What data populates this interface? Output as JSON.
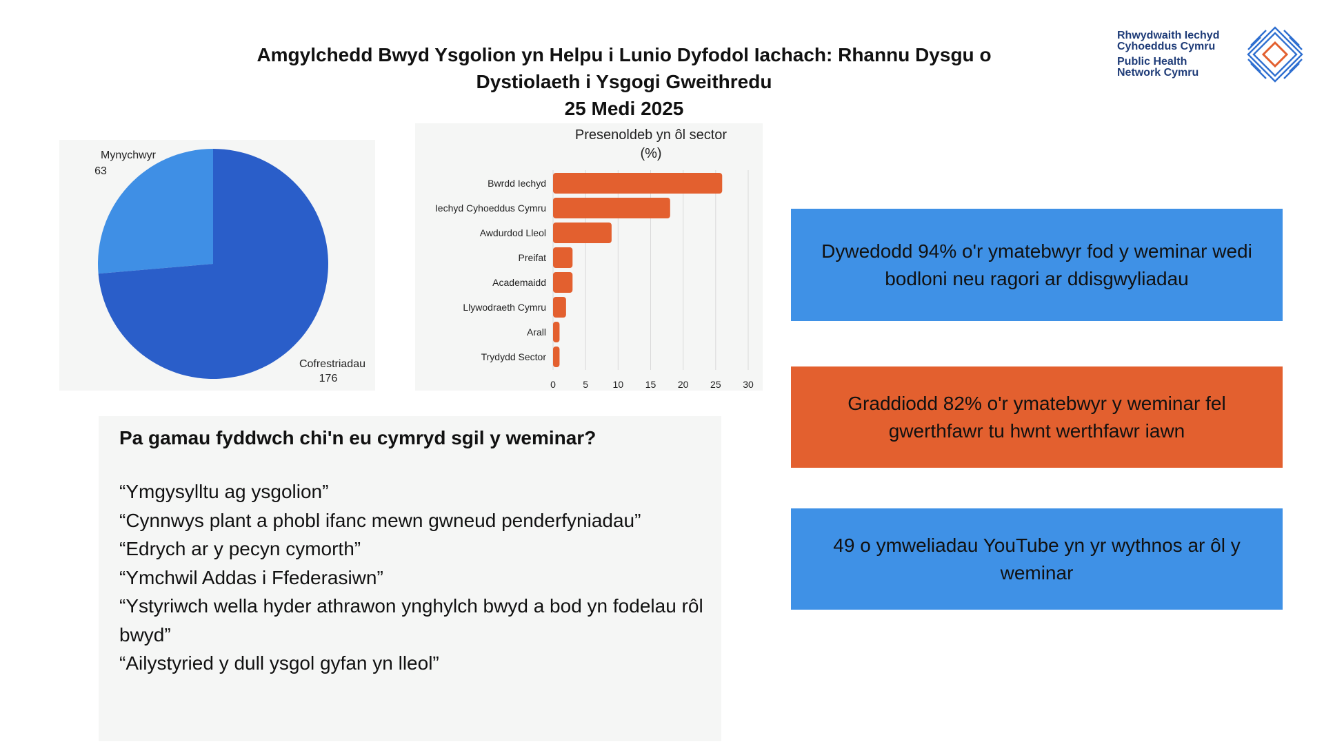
{
  "header": {
    "title_line1": "Amgylchedd Bwyd Ysgolion yn Helpu i Lunio Dyfodol Iachach: Rhannu Dysgu o",
    "title_line2": "Dystiolaeth i Ysgogi Gweithredu",
    "date": "25 Medi 2025"
  },
  "logo": {
    "line1": "Rhwydwaith Iechyd",
    "line2": "Cyhoeddus Cymru",
    "line3": "Public Health",
    "line4": "Network Cymru",
    "icon": "diamond-lattice-icon",
    "colors": {
      "text": "#1f3c78",
      "lines": "#2f6fd0",
      "accent": "#e3602f"
    }
  },
  "chart_data": [
    {
      "type": "pie",
      "title": "",
      "categories": [
        "Mynychwyr",
        "Cofrestriadau"
      ],
      "values": [
        63,
        176
      ],
      "colors": [
        "#3f8fe5",
        "#2a5ec9"
      ]
    },
    {
      "type": "bar",
      "orientation": "horizontal",
      "title": "Presenoldeb yn ôl sector (%)",
      "title_line1": "Presenoldeb yn ôl sector",
      "title_line2": "(%)",
      "categories": [
        "Bwrdd Iechyd",
        "Iechyd Cyhoeddus Cymru",
        "Awdurdod Lleol",
        "Preifat",
        "Academaidd",
        "Llywodraeth Cymru",
        "Arall",
        "Trydydd Sector"
      ],
      "values": [
        26,
        18,
        9,
        3,
        3,
        2,
        1,
        1
      ],
      "xlim": [
        0,
        30
      ],
      "xticks": [
        0,
        5,
        10,
        15,
        20,
        25,
        30
      ],
      "grid": true,
      "color": "#e3602f"
    }
  ],
  "quotes": {
    "heading": "Pa gamau fyddwch chi'n eu cymryd sgil y weminar?",
    "items": [
      "“Ymgysylltu ag ysgolion”",
      "“Cynnwys plant a phobl ifanc mewn gwneud penderfyniadau”",
      "“Edrych ar y pecyn cymorth”",
      "“Ymchwil Addas i Ffederasiwn”",
      "“Ystyriwch wella hyder athrawon ynghylch bwyd a bod yn fodelau rôl bwyd”",
      "“Ailystyried y dull ysgol gyfan yn lleol”"
    ]
  },
  "stats": {
    "satisfaction": "Dywedodd 94% o'r ymatebwyr fod y weminar wedi bodloni neu ragori ar ddisgwyliadau",
    "value_rating": "Graddiodd 82% o'r ymatebwyr y weminar fel gwerthfawr tu hwnt werthfawr iawn",
    "youtube": "49 o ymweliadau YouTube yn yr wythnos ar ôl y weminar"
  }
}
